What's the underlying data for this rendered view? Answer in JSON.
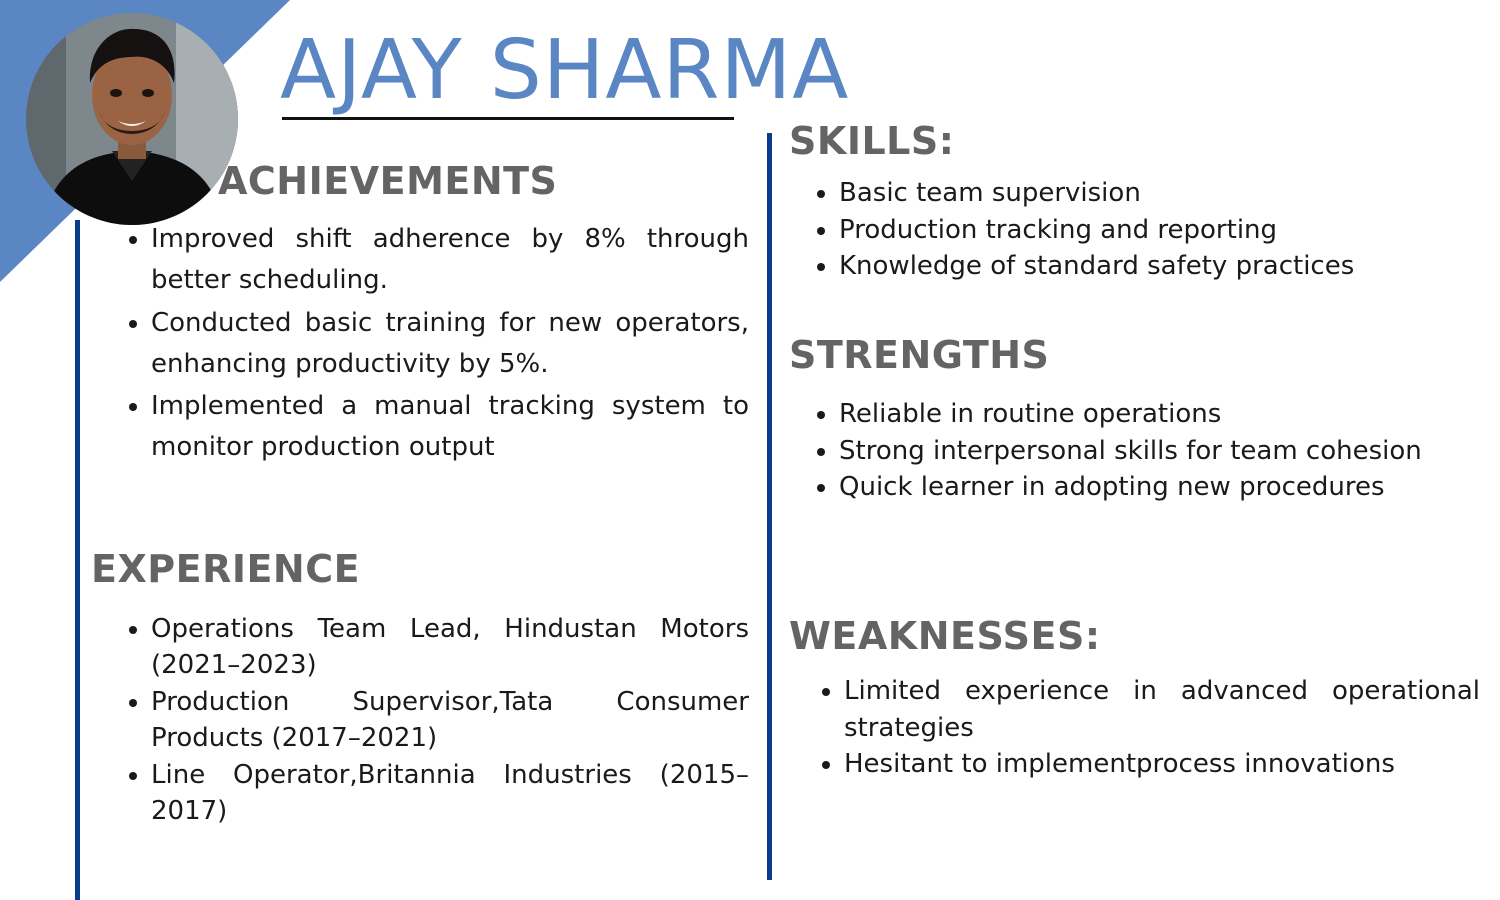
{
  "profile": {
    "name": "AJAY SHARMA"
  },
  "sections": {
    "achievements": {
      "title": "ACHIEVEMENTS",
      "items": [
        "Improved shift adherence by 8% through better scheduling.",
        "Conducted basic training for new operators, enhancing productivity by 5%.",
        "Implemented a manual tracking system to monitor production output"
      ]
    },
    "experience": {
      "title": "EXPERIENCE",
      "items": [
        "Operations Team Lead, Hindustan Motors (2021–2023)",
        "Production Supervisor,Tata Consumer Products (2017–2021)",
        "Line Operator,Britannia Industries (2015–2017)"
      ]
    },
    "skills": {
      "title": "SKILLS:",
      "items": [
        "Basic team supervision",
        "Production tracking and reporting",
        "Knowledge of standard safety practices"
      ]
    },
    "strengths": {
      "title": "STRENGTHS",
      "items": [
        "Reliable in routine operations",
        "Strong interpersonal skills for team cohesion",
        "Quick learner in adopting new procedures"
      ]
    },
    "weaknesses": {
      "title": "WEAKNESSES:",
      "items": [
        "Limited experience in advanced operational strategies",
        "Hesitant to implementprocess innovations"
      ]
    }
  },
  "colors": {
    "accent_blue": "#5b86c4",
    "divider_navy": "#0b3b8c",
    "heading_gray": "#646464"
  }
}
